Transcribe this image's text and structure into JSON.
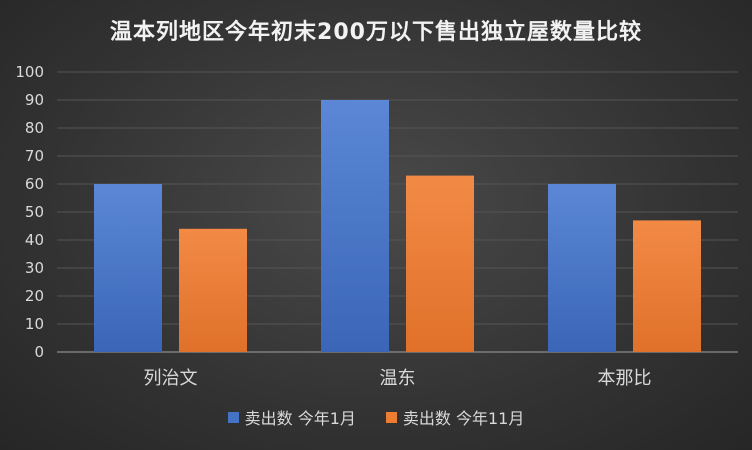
{
  "chart_data": {
    "type": "bar",
    "title": "温本列地区今年初末200万以下售出独立屋数量比较",
    "categories": [
      "列治文",
      "温东",
      "本那比"
    ],
    "series": [
      {
        "name": "卖出数 今年1月",
        "values": [
          60,
          90,
          60
        ],
        "color": "#4472c4"
      },
      {
        "name": "卖出数 今年11月",
        "values": [
          44,
          63,
          47
        ],
        "color": "#ed7d31"
      }
    ],
    "ylim": [
      0,
      100
    ],
    "yticks": [
      0,
      10,
      20,
      30,
      40,
      50,
      60,
      70,
      80,
      90,
      100
    ],
    "grid": true,
    "legend_position": "bottom"
  }
}
